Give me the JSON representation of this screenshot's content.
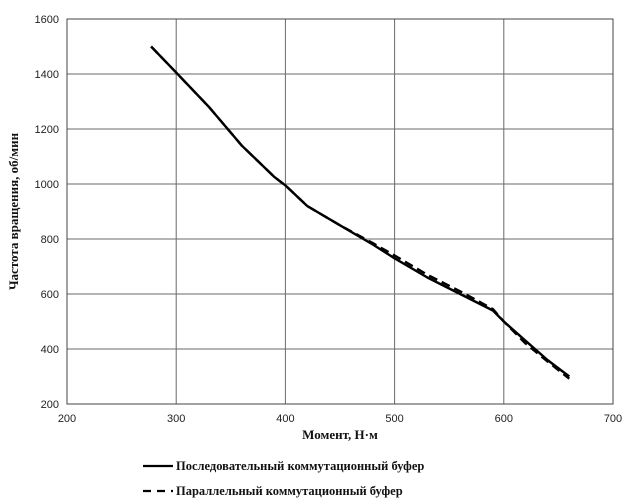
{
  "chart_data": {
    "type": "line",
    "title": "",
    "xlabel": "Момент, Н·м",
    "ylabel": "Частота вращения, об/мин",
    "xlim": [
      200,
      700
    ],
    "ylim": [
      200,
      1600
    ],
    "xticks": [
      "200",
      "300",
      "400",
      "500",
      "600",
      "700"
    ],
    "yticks": [
      "200",
      "400",
      "600",
      "800",
      "1000",
      "1200",
      "1400",
      "1600"
    ],
    "grid": true,
    "legend_position": "bottom",
    "series": [
      {
        "name": "Последовательный коммутационный буфер",
        "style": "solid",
        "color": "#000000",
        "x": [
          277,
          300,
          330,
          360,
          390,
          400,
          420,
          450,
          480,
          500,
          530,
          560,
          590,
          600,
          620,
          640,
          660
        ],
        "y": [
          1500,
          1405,
          1280,
          1140,
          1025,
          995,
          920,
          850,
          780,
          730,
          660,
          600,
          540,
          500,
          430,
          360,
          300
        ]
      },
      {
        "name": "Параллельный коммутационный буфер",
        "style": "dashed",
        "color": "#000000",
        "x": [
          277,
          300,
          330,
          360,
          390,
          400,
          420,
          450,
          480,
          500,
          530,
          560,
          590,
          600,
          620,
          640,
          660
        ],
        "y": [
          1500,
          1405,
          1280,
          1140,
          1025,
          995,
          920,
          850,
          785,
          740,
          670,
          610,
          545,
          500,
          420,
          355,
          292
        ]
      }
    ]
  }
}
